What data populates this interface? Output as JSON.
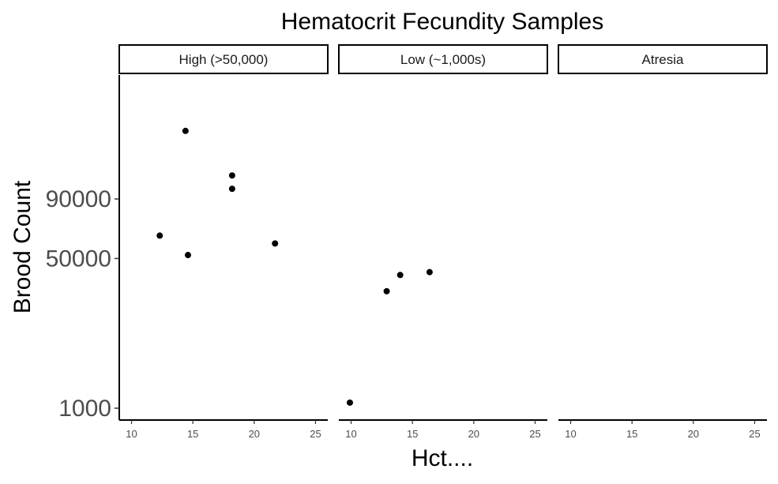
{
  "chart_data": {
    "type": "scatter",
    "title": "Hematocrit Fecundity Samples",
    "xlabel": "Hct....",
    "ylabel": "Brood Count",
    "y_scale": "sqrt",
    "xlim": [
      9,
      26
    ],
    "x_ticks": [
      10,
      15,
      20,
      25
    ],
    "x_tick_labels": [
      "10",
      "15",
      "20",
      "25"
    ],
    "y_ticks": [
      1000,
      50000,
      90000
    ],
    "y_tick_labels": [
      "1000",
      "50000",
      "90000"
    ],
    "grid": false,
    "legend": "none",
    "point_color": "#000000",
    "panels": [
      {
        "label": "High (>50,000)",
        "points": [
          {
            "x": 12.3,
            "y": 64000
          },
          {
            "x": 14.4,
            "y": 150000
          },
          {
            "x": 14.6,
            "y": 52000
          },
          {
            "x": 18.2,
            "y": 109000
          },
          {
            "x": 18.2,
            "y": 98000
          },
          {
            "x": 21.7,
            "y": 59000
          }
        ]
      },
      {
        "label": "Low (~1,000s)",
        "points": [
          {
            "x": 9.9,
            "y": 1500
          },
          {
            "x": 12.9,
            "y": 33000
          },
          {
            "x": 14.0,
            "y": 41000
          },
          {
            "x": 16.4,
            "y": 42500
          }
        ]
      },
      {
        "label": "Atresia",
        "points": []
      }
    ]
  }
}
